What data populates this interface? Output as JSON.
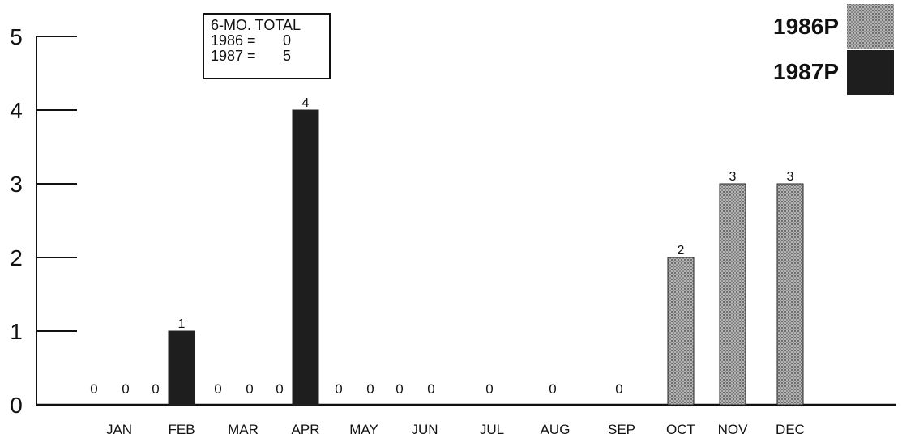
{
  "chart_data": {
    "type": "bar",
    "categories": [
      "JAN",
      "FEB",
      "MAR",
      "APR",
      "MAY",
      "JUN",
      "JUL",
      "AUG",
      "SEP",
      "OCT",
      "NOV",
      "DEC"
    ],
    "ylim": [
      0,
      5
    ],
    "yticks": [
      "0",
      "1",
      "2",
      "3",
      "4",
      "5"
    ],
    "grid": false,
    "legend_position": "top-right",
    "series": [
      {
        "name": "1986P",
        "color": "#9a9a9a",
        "pattern": "stipple"
      },
      {
        "name": "1987P",
        "color": "#1e1e1e",
        "pattern": "solid"
      }
    ],
    "groups": [
      {
        "category": "JAN",
        "values": [
          {
            "series": "1986P",
            "value": 0,
            "label": "0"
          },
          {
            "series": "1987P",
            "value": 0,
            "label": "0"
          }
        ]
      },
      {
        "category": "FEB",
        "values": [
          {
            "series": "1986P",
            "value": 0,
            "label": "0"
          },
          {
            "series": "1987P",
            "value": 1,
            "label": "1"
          }
        ]
      },
      {
        "category": "MAR",
        "values": [
          {
            "series": "1986P",
            "value": 0,
            "label": "0"
          },
          {
            "series": "1987P",
            "value": 0,
            "label": "0"
          }
        ]
      },
      {
        "category": "APR",
        "values": [
          {
            "series": "1986P",
            "value": 0,
            "label": "0"
          },
          {
            "series": "1987P",
            "value": 4,
            "label": "4"
          }
        ]
      },
      {
        "category": "MAY",
        "values": [
          {
            "series": "1986P",
            "value": 0,
            "label": "0"
          },
          {
            "series": "1987P",
            "value": 0,
            "label": "0"
          }
        ]
      },
      {
        "category": "JUN",
        "values": [
          {
            "series": "1986P",
            "value": 0,
            "label": "0"
          },
          {
            "series": "1987P",
            "value": 0,
            "label": "0"
          }
        ]
      },
      {
        "category": "JUL",
        "values": [
          {
            "series": "1986P",
            "value": 0,
            "label": "0"
          }
        ]
      },
      {
        "category": "AUG",
        "values": [
          {
            "series": "1986P",
            "value": 0,
            "label": "0"
          }
        ]
      },
      {
        "category": "SEP",
        "values": [
          {
            "series": "1986P",
            "value": 0,
            "label": "0"
          }
        ]
      },
      {
        "category": "OCT",
        "values": [
          {
            "series": "1986P",
            "value": 2,
            "label": "2"
          }
        ]
      },
      {
        "category": "NOV",
        "values": [
          {
            "series": "1986P",
            "value": 3,
            "label": "3"
          }
        ]
      },
      {
        "category": "DEC",
        "values": [
          {
            "series": "1986P",
            "value": 3,
            "label": "3"
          }
        ]
      }
    ],
    "totals_box": {
      "heading": "6-MO. TOTAL",
      "rows": [
        {
          "label": "1986 =",
          "value": "0"
        },
        {
          "label": "1987 =",
          "value": "5"
        }
      ]
    }
  }
}
